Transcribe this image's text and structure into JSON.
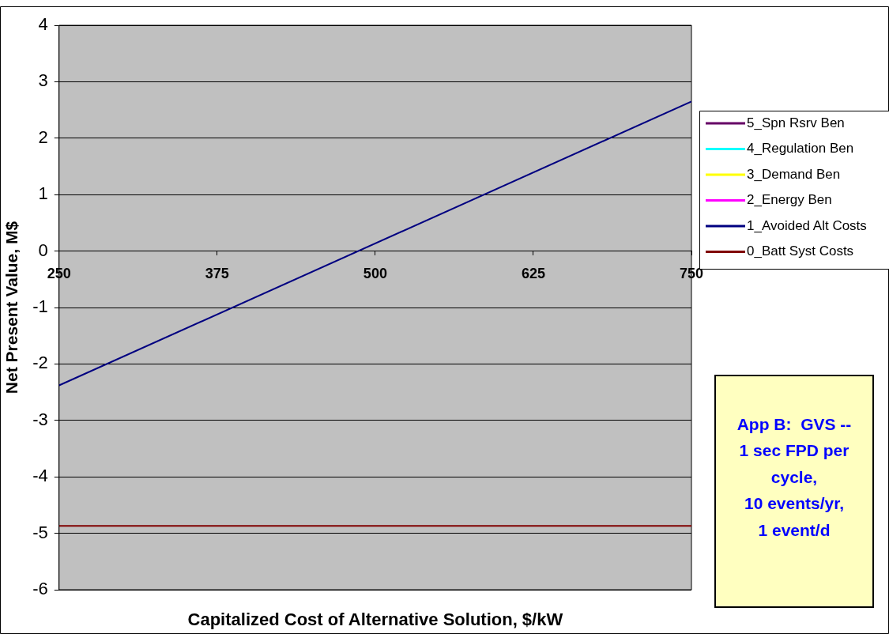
{
  "chart_data": {
    "type": "line",
    "xlabel": "Capitalized Cost of Alternative Solution, $/kW",
    "ylabel": "Net Present Value, M$",
    "x": [
      250,
      750
    ],
    "xlim": [
      250,
      750
    ],
    "xticks": [
      250,
      375,
      500,
      625,
      750
    ],
    "ylim": [
      -6,
      4
    ],
    "yticks": [
      -6,
      -5,
      -4,
      -3,
      -2,
      -1,
      0,
      1,
      2,
      3,
      4
    ],
    "grid": "y",
    "legend": "right",
    "marker": "none",
    "line_style": "solid",
    "series": [
      {
        "name": "0_Batt Syst Costs",
        "color": "#800000",
        "values": [
          -4.87,
          -4.87
        ]
      },
      {
        "name": "1_Avoided Alt Costs",
        "color": "#000080",
        "values": [
          -2.38,
          2.65
        ]
      },
      {
        "name": "2_Energy Ben",
        "color": "#ff00ff",
        "values": [
          null,
          null
        ]
      },
      {
        "name": "3_Demand Ben",
        "color": "#ffff00",
        "values": [
          null,
          null
        ]
      },
      {
        "name": "4_Regulation Ben",
        "color": "#00ffff",
        "values": [
          null,
          null
        ]
      },
      {
        "name": "5_Spn Rsrv Ben",
        "color": "#660066",
        "values": [
          null,
          null
        ]
      }
    ],
    "annotations": [
      "App B:  GVS --\n1 sec FPD per\ncycle,\n10 events/yr,\n1 event/d"
    ]
  }
}
